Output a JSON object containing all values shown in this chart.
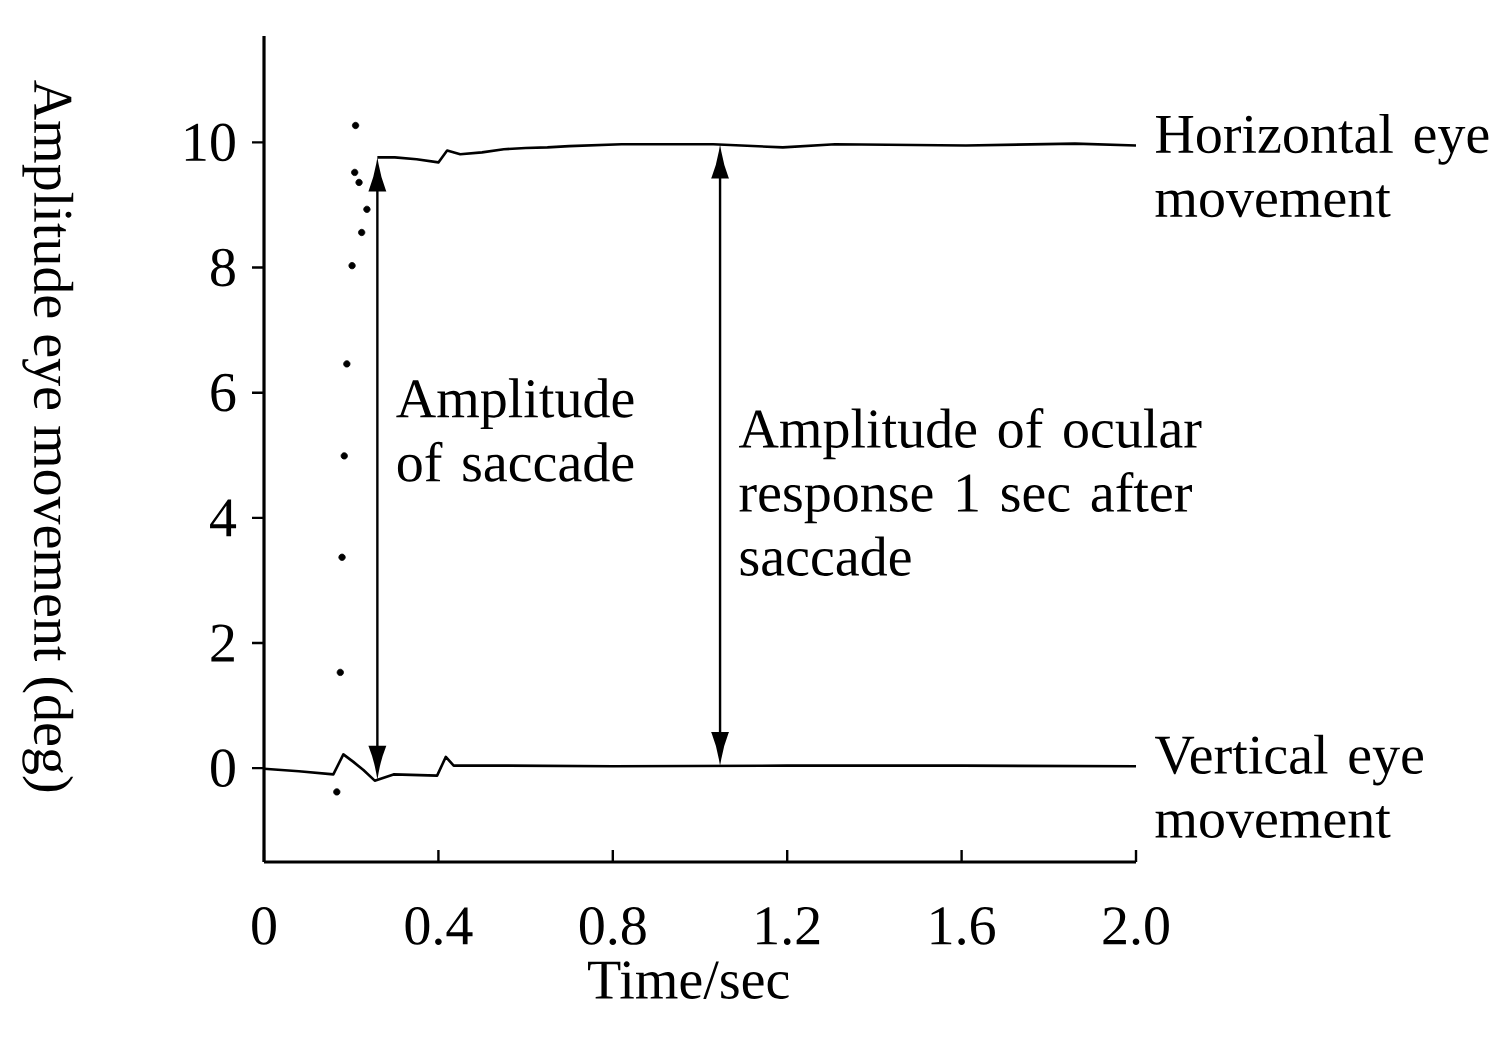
{
  "chart_data": {
    "type": "line",
    "xlabel": "Time/sec",
    "ylabel": "Amplitude eye movement (deg)",
    "xlim": [
      0,
      2.0
    ],
    "ylim": [
      -1.5,
      11.7
    ],
    "xticks": [
      0,
      0.4,
      0.8,
      1.2,
      1.6,
      {
        "value": 2,
        "label": "2.0"
      }
    ],
    "yticks": [
      0,
      2,
      4,
      6,
      8,
      10
    ],
    "series": [
      {
        "name": "Horizontal eye movement",
        "color": "#000000",
        "x": [
          0.26,
          0.3,
          0.35,
          0.4,
          0.42,
          0.45,
          0.5,
          0.55,
          0.6,
          0.65,
          0.7,
          0.82,
          1.03,
          1.19,
          1.31,
          1.61,
          1.86,
          2.0
        ],
        "values": [
          9.76,
          9.76,
          9.73,
          9.68,
          9.87,
          9.81,
          9.84,
          9.89,
          9.91,
          9.92,
          9.94,
          9.97,
          9.97,
          9.92,
          9.97,
          9.95,
          9.98,
          9.95
        ]
      },
      {
        "name": "Vertical eye movement",
        "color": "#000000",
        "x": [
          0,
          0.08,
          0.159,
          0.182,
          0.205,
          0.228,
          0.254,
          0.297,
          0.397,
          0.417,
          0.435,
          0.55,
          0.8,
          1.2,
          1.6,
          2.0
        ],
        "values": [
          -0.01,
          -0.05,
          -0.1,
          0.22,
          0.1,
          -0.03,
          -0.2,
          -0.1,
          -0.12,
          0.18,
          0.04,
          0.04,
          0.03,
          0.04,
          0.04,
          0.03
        ]
      },
      {
        "type": "scatter",
        "color": "#000000",
        "marker": "circle",
        "x": [
          0.167,
          0.175,
          0.179,
          0.184,
          0.19,
          0.202,
          0.208,
          0.21,
          0.218,
          0.224,
          0.236
        ],
        "values": [
          -0.38,
          1.53,
          3.37,
          4.99,
          6.46,
          8.03,
          9.52,
          10.27,
          9.36,
          8.56,
          8.93
        ]
      }
    ],
    "annotations": [
      "Amplitude of saccade",
      "Amplitude of ocular response 1 sec after saccade"
    ]
  }
}
